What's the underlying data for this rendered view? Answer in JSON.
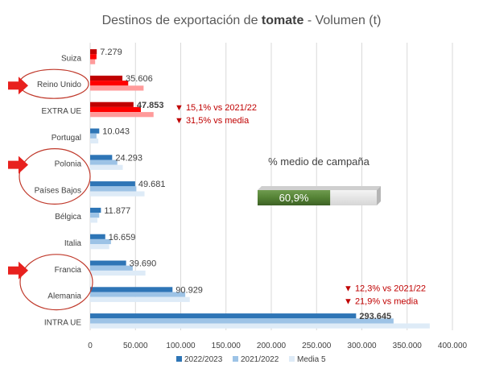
{
  "chart_data": {
    "type": "bar",
    "orientation": "horizontal",
    "title_prefix": "Destinos de exportación de ",
    "title_bold": "tomate",
    "title_suffix": " - Volumen (t)",
    "categories": [
      "Suiza",
      "Reino Unido",
      "EXTRA UE",
      "Portugal",
      "Polonia",
      "Países Bajos",
      "Bélgica",
      "Italia",
      "Francia",
      "Alemania",
      "INTRA UE"
    ],
    "series": [
      {
        "name": "2022/2023",
        "values": [
          7279,
          35606,
          47853,
          10043,
          24293,
          49681,
          11877,
          16659,
          39690,
          90929,
          293645
        ]
      },
      {
        "name": "2021/2022",
        "values": [
          7000,
          42000,
          56000,
          7000,
          30000,
          51000,
          10000,
          23000,
          47000,
          105000,
          335000
        ]
      },
      {
        "name": "Media 5",
        "values": [
          5500,
          59000,
          70000,
          9000,
          36000,
          60000,
          8000,
          21000,
          61000,
          110000,
          375000
        ]
      }
    ],
    "value_labels": [
      "7.279",
      "35.606",
      "47.853",
      "10.043",
      "24.293",
      "49.681",
      "11.877",
      "16.659",
      "39.690",
      "90.929",
      "293.645"
    ],
    "bold_value_labels": [
      "EXTRA UE",
      "INTRA UE"
    ],
    "highlighted_categories": [
      "Suiza",
      "Reino Unido",
      "EXTRA UE"
    ],
    "circled_categories": [
      "Reino Unido",
      "Polonia",
      "Países Bajos",
      "Francia",
      "Alemania"
    ],
    "arrow_categories": [
      "Reino Unido",
      "Polonia",
      "Francia"
    ],
    "xlim": [
      0,
      400000
    ],
    "xticks": [
      0,
      50000,
      100000,
      150000,
      200000,
      250000,
      300000,
      350000,
      400000
    ],
    "xtick_labels": [
      "0",
      "50.000",
      "100.000",
      "150.000",
      "200.000",
      "250.000",
      "300.000",
      "350.000",
      "400.000"
    ],
    "annotations": [
      {
        "category": "EXTRA UE",
        "lines": [
          "▼ 15,1% vs 2021/22",
          "▼ 31,5% vs media"
        ]
      },
      {
        "category": "INTRA UE",
        "lines": [
          "▼ 12,3% vs 2021/22",
          "▼ 21,9% vs media"
        ]
      }
    ],
    "campaign": {
      "title": "% medio de campaña",
      "label": "60,9%",
      "value": 60.9
    },
    "legend_position": "bottom"
  },
  "colors": {
    "series_blue": [
      "#2e75b6",
      "#9dc3e6",
      "#deebf7"
    ],
    "series_red": [
      "#c00000",
      "#ff0000",
      "#ff9b9b"
    ],
    "annotation": "#c00000",
    "arrow": "#e8211e",
    "circle": "#c0392b",
    "campaign_fill": "#548235",
    "campaign_rest": "#e7e6e6",
    "grid": "#d9d9d9",
    "text": "#404040"
  }
}
